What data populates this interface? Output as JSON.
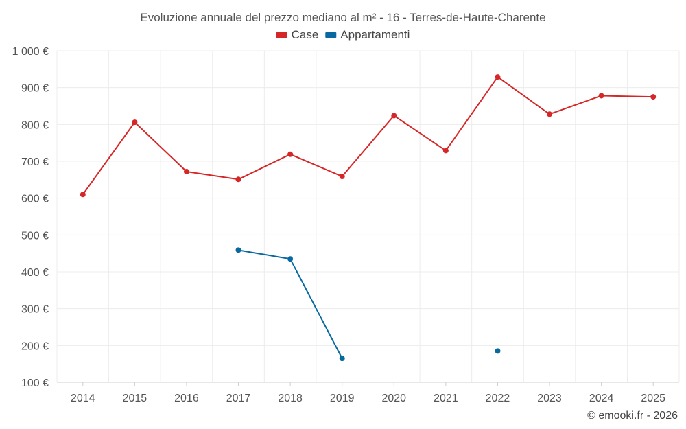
{
  "chart_data": {
    "type": "line",
    "title": "Evoluzione annuale del prezzo mediano al m² - 16 - Terres-de-Haute-Charente",
    "categories": [
      "2014",
      "2015",
      "2016",
      "2017",
      "2018",
      "2019",
      "2020",
      "2021",
      "2022",
      "2023",
      "2024",
      "2025"
    ],
    "ylim": [
      100,
      1000
    ],
    "yticks": [
      100,
      200,
      300,
      400,
      500,
      600,
      700,
      800,
      900,
      1000
    ],
    "ytick_labels": [
      "100 €",
      "200 €",
      "300 €",
      "400 €",
      "500 €",
      "600 €",
      "700 €",
      "800 €",
      "900 €",
      "1 000 €"
    ],
    "xlabel": "",
    "ylabel": "",
    "legend_position": "top-center",
    "grid": true,
    "series": [
      {
        "name": "Case",
        "color": "#d62728",
        "values": [
          610,
          806,
          672,
          651,
          719,
          659,
          824,
          729,
          929,
          828,
          878,
          875
        ]
      },
      {
        "name": "Appartamenti",
        "color": "#0868a0",
        "values": [
          null,
          null,
          null,
          459,
          435,
          165,
          null,
          null,
          185,
          null,
          null,
          null
        ]
      }
    ]
  },
  "credit": "© emooki.fr - 2026"
}
